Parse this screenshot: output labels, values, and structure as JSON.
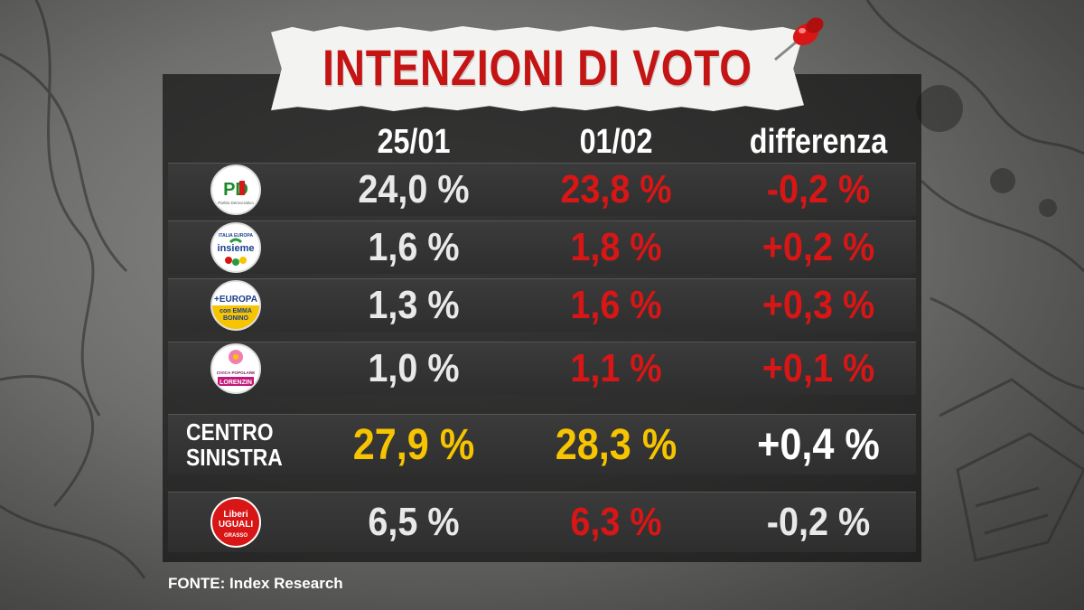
{
  "title": "INTENZIONI DI VOTO",
  "columns": [
    "25/01",
    "01/02",
    "differenza"
  ],
  "rows": [
    {
      "logo_icon": "partito-democratico-logo",
      "logo_text": [
        "PD",
        "Partito Democratico"
      ],
      "v1": "24,0 %",
      "v2": "23,8 %",
      "diff": "-0,2 %",
      "colors": {
        "accent": "#d81616"
      }
    },
    {
      "logo_icon": "insieme-logo",
      "logo_text": [
        "ITALIA EUROPA",
        "insieme"
      ],
      "v1": "1,6 %",
      "v2": "1,8 %",
      "diff": "+0,2 %"
    },
    {
      "logo_icon": "piu-europa-logo",
      "logo_text": [
        "+EUROPA",
        "con EMMA",
        "BONINO"
      ],
      "v1": "1,3 %",
      "v2": "1,6 %",
      "diff": "+0,3 %"
    },
    {
      "logo_icon": "civica-popolare-logo",
      "logo_text": [
        "CIVICA POPOLARE",
        "LORENZIN"
      ],
      "v1": "1,0 %",
      "v2": "1,1 %",
      "diff": "+0,1 %"
    }
  ],
  "total": {
    "label_line1": "CENTRO",
    "label_line2": "SINISTRA",
    "v1": "27,9 %",
    "v2": "28,3 %",
    "diff": "+0,4 %"
  },
  "extra_row": {
    "logo_icon": "liberi-uguali-logo",
    "logo_text": [
      "Liberi",
      "UGUALI",
      "GRASSO"
    ],
    "v1": "6,5 %",
    "v2": "6,3 %",
    "diff": "-0,2 %"
  },
  "source": "FONTE:  Index Research",
  "colors": {
    "red": "#d81616",
    "yellow": "#f6c400",
    "white": "#e9e9e9"
  }
}
